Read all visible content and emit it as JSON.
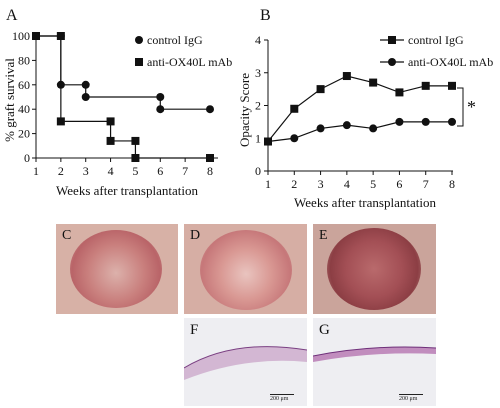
{
  "panels": {
    "A": "A",
    "B": "B",
    "C": "C",
    "D": "D",
    "E": "E",
    "F": "F",
    "G": "G"
  },
  "chart_data": [
    {
      "type": "line",
      "xlabel": "Weeks after transplantation",
      "ylabel": "% graft survival",
      "x": [
        1,
        2,
        3,
        4,
        5,
        6,
        7,
        8
      ],
      "xlim": [
        1,
        8
      ],
      "ylim": [
        0,
        100
      ],
      "yticks": [
        0,
        20,
        40,
        60,
        80,
        100
      ],
      "step": true,
      "legend_position": "top-right",
      "series": [
        {
          "name": "control IgG",
          "marker": "circle",
          "points": [
            [
              1,
              100
            ],
            [
              2,
              100
            ],
            [
              2,
              60
            ],
            [
              3,
              60
            ],
            [
              3,
              50
            ],
            [
              6,
              50
            ],
            [
              6,
              40
            ],
            [
              8,
              40
            ]
          ]
        },
        {
          "name": "anti-OX40L mAb",
          "marker": "square",
          "points": [
            [
              1,
              100
            ],
            [
              2,
              100
            ],
            [
              2,
              30
            ],
            [
              4,
              30
            ],
            [
              4,
              14
            ],
            [
              5,
              14
            ],
            [
              5,
              0
            ],
            [
              8,
              0
            ]
          ]
        }
      ]
    },
    {
      "type": "line",
      "xlabel": "Weeks after transplantation",
      "ylabel": "Opacity Score",
      "x": [
        1,
        2,
        3,
        4,
        5,
        6,
        7,
        8
      ],
      "xlim": [
        1,
        8
      ],
      "ylim": [
        0,
        4
      ],
      "yticks": [
        0,
        1,
        2,
        3,
        4
      ],
      "legend_position": "top-right",
      "annotation": "*",
      "series": [
        {
          "name": "control IgG",
          "marker": "square",
          "values": [
            0.9,
            1.9,
            2.5,
            2.9,
            2.7,
            2.4,
            2.6,
            2.6
          ]
        },
        {
          "name": "anti-OX40L mAb",
          "marker": "circle",
          "values": [
            0.9,
            1.0,
            1.3,
            1.4,
            1.3,
            1.5,
            1.5,
            1.5
          ]
        }
      ]
    }
  ],
  "scale": {
    "F": "200 μm",
    "G": "200 μm"
  }
}
